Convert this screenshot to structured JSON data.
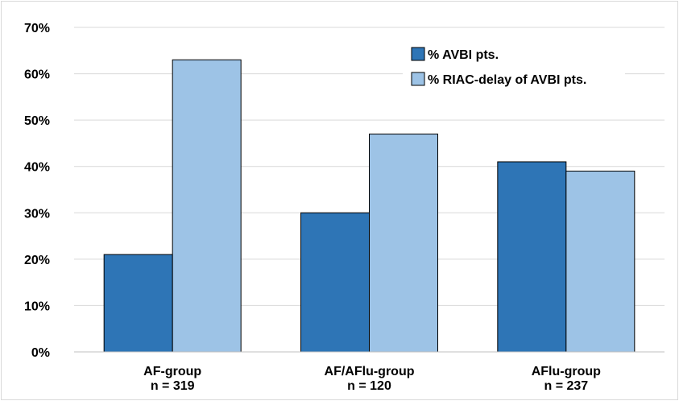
{
  "chart_data": {
    "type": "bar",
    "categories": [
      [
        "AF-group",
        "n = 319"
      ],
      [
        "AF/AFlu-group",
        "n = 120"
      ],
      [
        "AFlu-group",
        "n = 237"
      ]
    ],
    "series": [
      {
        "name": "% AVBI pts.",
        "values": [
          21,
          30,
          41
        ],
        "color": "#2e75b6"
      },
      {
        "name": "% RIAC-delay of AVBI pts.",
        "values": [
          63,
          47,
          39
        ],
        "color": "#9dc3e6"
      }
    ],
    "ylim": [
      0,
      70
    ],
    "yticks": [
      0,
      10,
      20,
      30,
      40,
      50,
      60,
      70
    ],
    "ytick_format": "%",
    "grid": true,
    "legend_position": "top-right"
  }
}
